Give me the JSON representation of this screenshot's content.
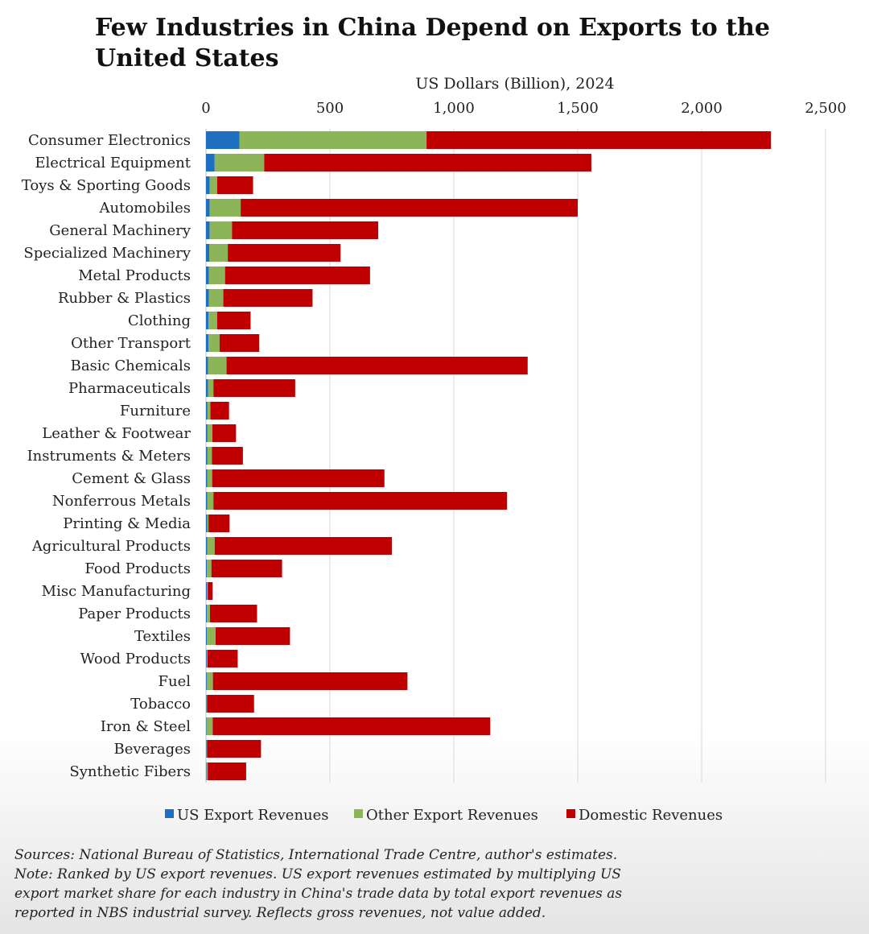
{
  "chart_data": {
    "type": "bar",
    "orientation": "horizontal",
    "stacked": true,
    "title": "Few Industries in China Depend on Exports to the United States",
    "xlabel": "US Dollars (Billion), 2024",
    "xlim": [
      0,
      2500
    ],
    "xticks": [
      0,
      500,
      1000,
      1500,
      2000,
      2500
    ],
    "xtick_labels": [
      "0",
      "500",
      "1,000",
      "1,500",
      "2,000",
      "2,500"
    ],
    "grid": "vertical",
    "legend_position": "bottom",
    "categories": [
      "Consumer Electronics",
      "Electrical Equipment",
      "Toys & Sporting Goods",
      "Automobiles",
      "General Machinery",
      "Specialized Machinery",
      "Metal Products",
      "Rubber & Plastics",
      "Clothing",
      "Other Transport",
      "Basic Chemicals",
      "Pharmaceuticals",
      "Furniture",
      "Leather & Footwear",
      "Instruments & Meters",
      "Cement & Glass",
      "Nonferrous Metals",
      "Printing & Media",
      "Agricultural Products",
      "Food Products",
      "Misc Manufacturing",
      "Paper Products",
      "Textiles",
      "Wood Products",
      "Fuel",
      "Tobacco",
      "Iron & Steel",
      "Beverages",
      "Synthetic Fibers"
    ],
    "series": [
      {
        "name": "US Export Revenues",
        "color": "#1f6fc1",
        "values": [
          135,
          35,
          15,
          15,
          15,
          13,
          12,
          12,
          10,
          10,
          8,
          8,
          6,
          6,
          6,
          5,
          5,
          5,
          5,
          4,
          4,
          4,
          4,
          3,
          3,
          2,
          2,
          2,
          2
        ]
      },
      {
        "name": "Other Export Revenues",
        "color": "#8cb55a",
        "values": [
          755,
          200,
          30,
          125,
          90,
          75,
          65,
          58,
          35,
          45,
          75,
          22,
          12,
          20,
          18,
          20,
          25,
          5,
          30,
          18,
          3,
          12,
          35,
          3,
          25,
          2,
          25,
          2,
          5
        ]
      },
      {
        "name": "Domestic Revenues",
        "color": "#c00000",
        "values": [
          1390,
          1320,
          145,
          1360,
          590,
          455,
          585,
          360,
          135,
          160,
          1215,
          330,
          75,
          95,
          125,
          695,
          1185,
          85,
          715,
          285,
          20,
          190,
          300,
          122,
          785,
          190,
          1120,
          218,
          155
        ]
      }
    ]
  },
  "notes": {
    "sources": "Sources: National Bureau of Statistics, International Trade Centre, author's estimates.",
    "note": "Note: Ranked by US export revenues. US export revenues estimated by multiplying US export market share for each industry in China's trade data by total export revenues as reported in NBS industrial survey. Reflects gross revenues, not value added."
  }
}
